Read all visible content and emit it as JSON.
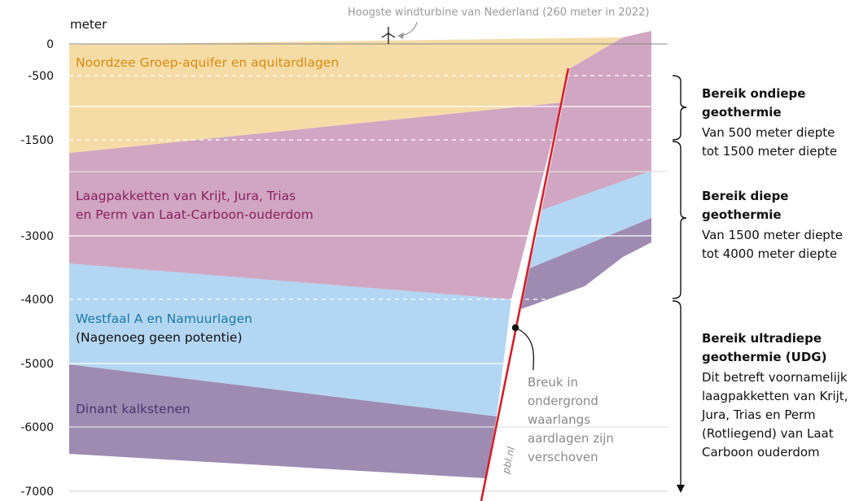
{
  "axis": {
    "unit": "meter",
    "ticks": [
      {
        "value": 0,
        "label": "0"
      },
      {
        "value": -500,
        "label": "-500"
      },
      {
        "value": -1500,
        "label": "-1500"
      },
      {
        "value": -3000,
        "label": "-3000"
      },
      {
        "value": -4000,
        "label": "-4000"
      },
      {
        "value": -5000,
        "label": "-5000"
      },
      {
        "value": -6000,
        "label": "-6000"
      },
      {
        "value": -7000,
        "label": "-7000"
      }
    ]
  },
  "turbine_note": "Hoogste windturbine van Nederland (260 meter in 2022)",
  "layers": {
    "north_sea": "Noordzee Groep-aquifer en aquitardlagen",
    "cretaceous_line1": "Laagpakketten van Krijt, Jura, Trias",
    "cretaceous_line2": "en Perm van Laat-Carboon-ouderdom",
    "westphalian_line1": "Westfaal A en Namuurlagen",
    "westphalian_line2": "(Nagenoeg geen potentie)",
    "dinantian": "Dinant kalkstenen"
  },
  "fault_note": [
    "Breuk in",
    "ondergrond",
    "waarlangs",
    "aardlagen zijn",
    "verschoven"
  ],
  "credit": "pbl.nl",
  "ranges": {
    "shallow": {
      "title": [
        "Bereik ondiepe",
        "geothermie"
      ],
      "text": [
        "Van 500 meter diepte",
        "tot 1500 meter diepte"
      ]
    },
    "deep": {
      "title": [
        "Bereik diepe",
        "geothermie"
      ],
      "text": [
        "Van 1500 meter diepte",
        "tot 4000 meter diepte"
      ]
    },
    "ultradeep": {
      "title": [
        "Bereik ultradiepe",
        "geothermie (UDG)"
      ],
      "text": [
        "Dit betreft voornamelijk",
        "laagpakketten van Krijt,",
        "Jura, Trias en Perm",
        "(Rotliegend) van Laat",
        "Carboon ouderdom"
      ]
    }
  },
  "colors": {
    "north_sea": "#f5dca6",
    "cretaceous": "#d0a6c2",
    "westphalian": "#b3d6f2",
    "dinantian": "#9e8bb2",
    "fault": "#d4202a",
    "north_sea_text": "#d98a12",
    "cretaceous_text": "#8a1f5e",
    "westphalian_text": "#1a79a6",
    "dinantian_text": "#4b3470"
  }
}
